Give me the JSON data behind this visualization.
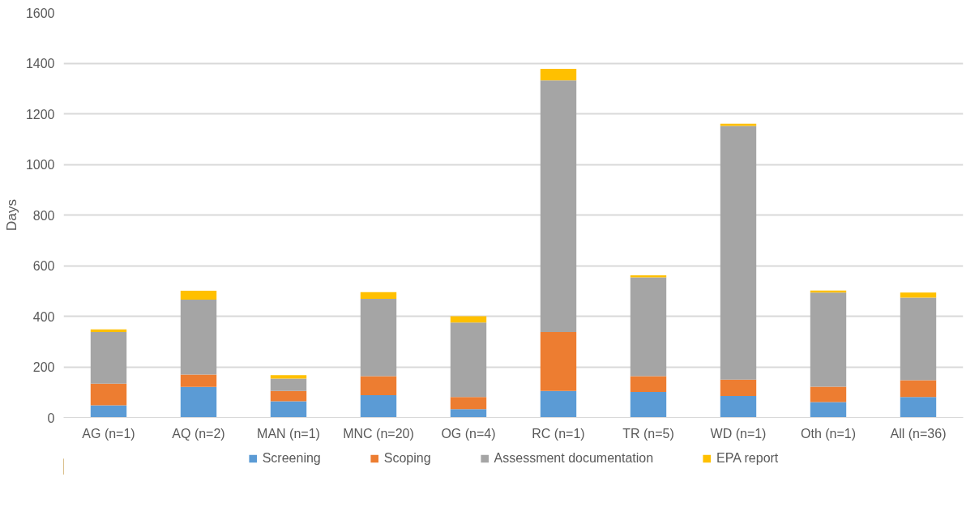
{
  "chart_data": {
    "type": "bar",
    "stacked": true,
    "ylabel": "Days",
    "categories": [
      "AG (n=1)",
      "AQ (n=2)",
      "MAN (n=1)",
      "MNC (n=20)",
      "OG (n=4)",
      "RC (n=1)",
      "TR (n=5)",
      "WD (n=1)",
      "Oth (n=1)",
      "All (n=36)"
    ],
    "series": [
      {
        "name": "Screening",
        "color": "#5b9bd5",
        "values": [
          48,
          121,
          64,
          88,
          33,
          105,
          101,
          85,
          61,
          81
        ]
      },
      {
        "name": "Scoping",
        "color": "#ed7d31",
        "values": [
          86,
          49,
          41,
          75,
          48,
          233,
          62,
          65,
          61,
          66
        ]
      },
      {
        "name": "Assessment documentation",
        "color": "#a5a5a5",
        "values": [
          204,
          296,
          49,
          306,
          294,
          994,
          391,
          1002,
          372,
          327
        ]
      },
      {
        "name": "EPA report",
        "color": "#ffc000",
        "values": [
          10,
          35,
          13,
          26,
          25,
          46,
          8,
          9,
          8,
          20
        ]
      }
    ],
    "ylim": [
      0,
      1600
    ],
    "yticks": [
      0,
      200,
      400,
      600,
      800,
      1000,
      1200,
      1400,
      1600
    ],
    "grid": "y",
    "legend": "bottom"
  }
}
